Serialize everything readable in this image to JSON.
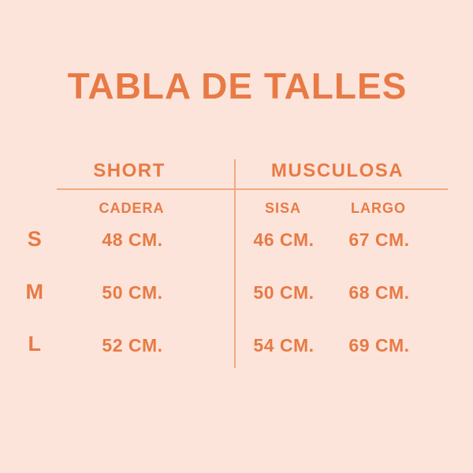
{
  "title": "TABLA DE TALLES",
  "colors": {
    "background": "#fce4da",
    "text": "#e87a45",
    "line": "#eeaa80"
  },
  "chart_data": {
    "type": "table",
    "title": "TABLA DE TALLES",
    "sections": [
      {
        "label": "SHORT",
        "columns": [
          "CADERA"
        ]
      },
      {
        "label": "MUSCULOSA",
        "columns": [
          "SISA",
          "LARGO"
        ]
      }
    ],
    "unit": "CM.",
    "rows": [
      {
        "size": "S",
        "CADERA": "48 CM.",
        "SISA": "46 CM.",
        "LARGO": "67 CM."
      },
      {
        "size": "M",
        "CADERA": "50 CM.",
        "SISA": "50 CM.",
        "LARGO": "68 CM."
      },
      {
        "size": "L",
        "CADERA": "52 CM.",
        "SISA": "54 CM.",
        "LARGO": "69 CM."
      }
    ],
    "rows_numeric": {
      "CADERA": [
        48,
        50,
        52
      ],
      "SISA": [
        46,
        50,
        54
      ],
      "LARGO": [
        67,
        68,
        69
      ]
    }
  }
}
